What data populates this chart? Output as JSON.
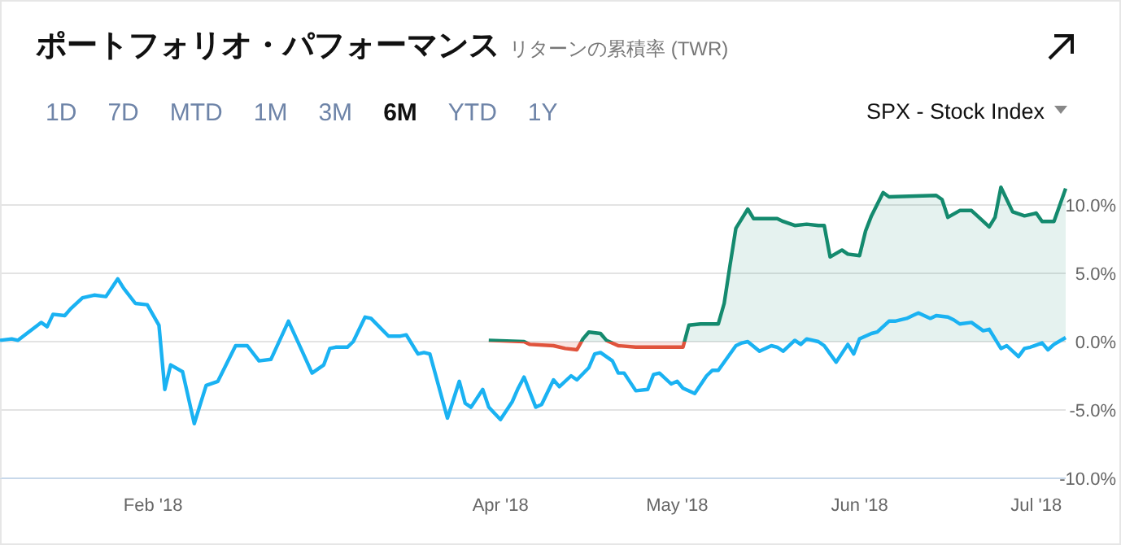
{
  "chart_data": {
    "type": "line",
    "title": "ポートフォリオ・パフォーマンス",
    "subtitle": "リターンの累積率 (TWR)",
    "annotations": [
      "1D",
      "7D",
      "MTD",
      "1M",
      "3M",
      "6M",
      "YTD",
      "1Y",
      "SPX - Stock Index"
    ],
    "xlim": [
      "2018-01-06",
      "2018-07-06"
    ],
    "xticks": [
      {
        "value": "2018-02-01",
        "label": "Feb '18"
      },
      {
        "value": "2018-04-01",
        "label": "Apr '18"
      },
      {
        "value": "2018-05-01",
        "label": "May '18"
      },
      {
        "value": "2018-06-01",
        "label": "Jun '18"
      },
      {
        "value": "2018-07-01",
        "label": "Jul '18"
      }
    ],
    "ylim": [
      -10,
      12.5
    ],
    "yticks": [
      {
        "value": -10,
        "label": "-10.0%"
      },
      {
        "value": -5,
        "label": "-5.0%"
      },
      {
        "value": 0,
        "label": "0.0%"
      },
      {
        "value": 5,
        "label": "5.0%"
      },
      {
        "value": 10,
        "label": "10.0%"
      }
    ],
    "grid": "y",
    "series": [
      {
        "type": "area",
        "color": "#148a6e",
        "x": [
          "2018-03-30",
          "2018-04-05",
          "2018-04-06",
          "2018-04-10",
          "2018-04-12",
          "2018-04-14",
          "2018-04-15",
          "2018-04-16",
          "2018-04-18",
          "2018-04-19",
          "2018-04-21",
          "2018-04-24",
          "2018-05-02",
          "2018-05-03",
          "2018-05-05",
          "2018-05-08",
          "2018-05-09",
          "2018-05-10",
          "2018-05-11",
          "2018-05-13",
          "2018-05-14",
          "2018-05-18",
          "2018-05-19",
          "2018-05-21",
          "2018-05-23",
          "2018-05-25",
          "2018-05-26",
          "2018-05-27",
          "2018-05-29",
          "2018-05-30",
          "2018-06-01",
          "2018-06-02",
          "2018-06-03",
          "2018-06-05",
          "2018-06-06",
          "2018-06-14",
          "2018-06-15",
          "2018-06-16",
          "2018-06-18",
          "2018-06-20",
          "2018-06-21",
          "2018-06-23",
          "2018-06-24",
          "2018-06-25",
          "2018-06-27",
          "2018-06-29",
          "2018-07-01",
          "2018-07-02",
          "2018-07-04",
          "2018-07-06"
        ],
        "values": [
          0.1,
          0.0,
          -0.2,
          -0.3,
          -0.5,
          -0.6,
          0.2,
          0.7,
          0.6,
          0.1,
          -0.3,
          -0.4,
          -0.4,
          1.2,
          1.3,
          1.3,
          2.8,
          5.6,
          8.3,
          9.7,
          9.0,
          9.0,
          8.8,
          8.5,
          8.6,
          8.5,
          8.5,
          6.2,
          6.7,
          6.4,
          6.3,
          8.1,
          9.2,
          10.9,
          10.6,
          10.7,
          10.4,
          9.1,
          9.6,
          9.6,
          9.2,
          8.4,
          9.1,
          11.3,
          9.5,
          9.2,
          9.4,
          8.8,
          8.8,
          11.2
        ]
      },
      {
        "type": "line",
        "color": "#1ab2f2",
        "x": [
          "2018-01-06",
          "2018-01-08",
          "2018-01-09",
          "2018-01-13",
          "2018-01-14",
          "2018-01-15",
          "2018-01-17",
          "2018-01-18",
          "2018-01-20",
          "2018-01-22",
          "2018-01-24",
          "2018-01-26",
          "2018-01-27",
          "2018-01-29",
          "2018-01-31",
          "2018-02-02",
          "2018-02-03",
          "2018-02-04",
          "2018-02-06",
          "2018-02-08",
          "2018-02-10",
          "2018-02-12",
          "2018-02-15",
          "2018-02-17",
          "2018-02-19",
          "2018-02-21",
          "2018-02-24",
          "2018-02-26",
          "2018-02-28",
          "2018-03-02",
          "2018-03-03",
          "2018-03-04",
          "2018-03-06",
          "2018-03-07",
          "2018-03-09",
          "2018-03-10",
          "2018-03-13",
          "2018-03-15",
          "2018-03-16",
          "2018-03-18",
          "2018-03-19",
          "2018-03-20",
          "2018-03-23",
          "2018-03-25",
          "2018-03-26",
          "2018-03-27",
          "2018-03-29",
          "2018-03-30",
          "2018-04-01",
          "2018-04-03",
          "2018-04-04",
          "2018-04-05",
          "2018-04-07",
          "2018-04-08",
          "2018-04-10",
          "2018-04-11",
          "2018-04-13",
          "2018-04-14",
          "2018-04-16",
          "2018-04-17",
          "2018-04-18",
          "2018-04-20",
          "2018-04-21",
          "2018-04-22",
          "2018-04-24",
          "2018-04-26",
          "2018-04-27",
          "2018-04-28",
          "2018-04-30",
          "2018-05-01",
          "2018-05-02",
          "2018-05-04",
          "2018-05-06",
          "2018-05-07",
          "2018-05-08",
          "2018-05-11",
          "2018-05-12",
          "2018-05-13",
          "2018-05-15",
          "2018-05-17",
          "2018-05-18",
          "2018-05-19",
          "2018-05-21",
          "2018-05-22",
          "2018-05-23",
          "2018-05-25",
          "2018-05-26",
          "2018-05-28",
          "2018-05-30",
          "2018-05-31",
          "2018-06-01",
          "2018-06-03",
          "2018-06-04",
          "2018-06-06",
          "2018-06-07",
          "2018-06-09",
          "2018-06-10",
          "2018-06-11",
          "2018-06-13",
          "2018-06-14",
          "2018-06-16",
          "2018-06-17",
          "2018-06-18",
          "2018-06-20",
          "2018-06-22",
          "2018-06-23",
          "2018-06-25",
          "2018-06-26",
          "2018-06-28",
          "2018-06-29",
          "2018-06-30",
          "2018-07-02",
          "2018-07-03",
          "2018-07-04",
          "2018-07-06"
        ],
        "values": [
          0.1,
          0.2,
          0.1,
          1.4,
          1.1,
          2.0,
          1.9,
          2.4,
          3.2,
          3.4,
          3.3,
          4.6,
          3.9,
          2.8,
          2.7,
          1.2,
          -3.5,
          -1.7,
          -2.2,
          -6.0,
          -3.2,
          -2.9,
          -0.3,
          -0.3,
          -1.4,
          -1.3,
          1.5,
          -0.4,
          -2.3,
          -1.7,
          -0.5,
          -0.4,
          -0.4,
          0.0,
          1.8,
          1.7,
          0.4,
          0.4,
          0.5,
          -0.9,
          -0.8,
          -0.9,
          -5.6,
          -2.9,
          -4.5,
          -4.8,
          -3.5,
          -4.8,
          -5.7,
          -4.4,
          -3.4,
          -2.6,
          -4.8,
          -4.6,
          -2.8,
          -3.3,
          -2.5,
          -2.8,
          -1.9,
          -0.9,
          -0.8,
          -1.4,
          -2.3,
          -2.3,
          -3.6,
          -3.5,
          -2.4,
          -2.3,
          -3.1,
          -2.9,
          -3.4,
          -3.8,
          -2.5,
          -2.1,
          -2.1,
          -0.3,
          -0.1,
          0.0,
          -0.7,
          -0.3,
          -0.4,
          -0.7,
          0.1,
          -0.2,
          0.2,
          0.0,
          -0.3,
          -1.5,
          -0.2,
          -0.9,
          0.2,
          0.6,
          0.7,
          1.5,
          1.5,
          1.7,
          1.9,
          2.1,
          1.7,
          1.9,
          1.8,
          1.6,
          1.3,
          1.4,
          0.8,
          0.9,
          -0.5,
          -0.3,
          -1.1,
          -0.5,
          -0.4,
          -0.1,
          -0.6,
          -0.2,
          0.3
        ]
      }
    ]
  }
}
